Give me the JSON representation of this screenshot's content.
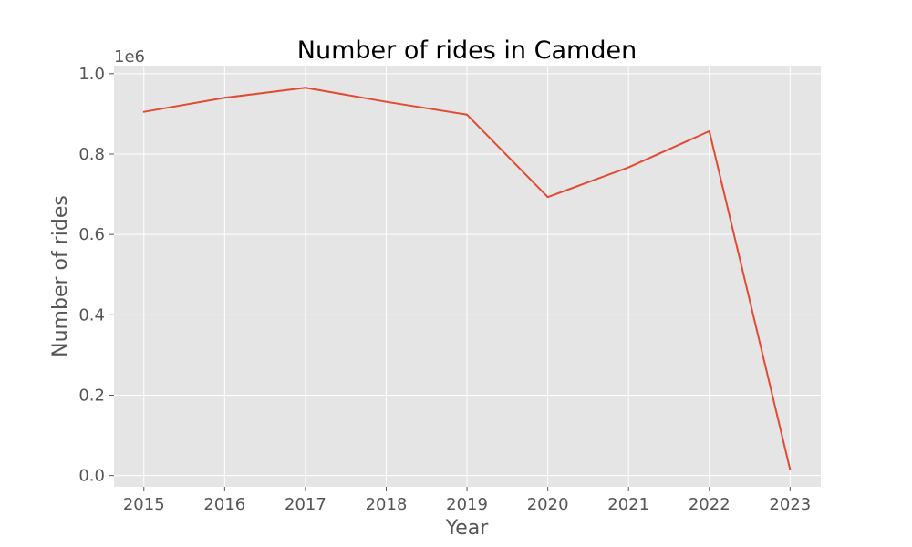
{
  "chart_data": {
    "type": "line",
    "title": "Number of rides in Camden",
    "xlabel": "Year",
    "ylabel": "Number of rides",
    "y_offset_label": "1e6",
    "x": [
      2015,
      2016,
      2017,
      2018,
      2019,
      2020,
      2021,
      2022,
      2023
    ],
    "x_ticks": [
      "2015",
      "2016",
      "2017",
      "2018",
      "2019",
      "2020",
      "2021",
      "2022",
      "2023"
    ],
    "y_ticks": [
      "0.0",
      "0.2",
      "0.4",
      "0.6",
      "0.8",
      "1.0"
    ],
    "y_tick_values": [
      0,
      200000,
      400000,
      600000,
      800000,
      1000000
    ],
    "series": [
      {
        "values": [
          905000,
          940000,
          965000,
          930000,
          898000,
          693000,
          767000,
          857000,
          15000
        ],
        "color": "#e24a33"
      }
    ],
    "xlim": [
      2014.63,
      2023.38
    ],
    "ylim": [
      -28000,
      1020000
    ],
    "grid": true,
    "plot_background": "#e5e5e5",
    "grid_color": "#ffffff"
  }
}
